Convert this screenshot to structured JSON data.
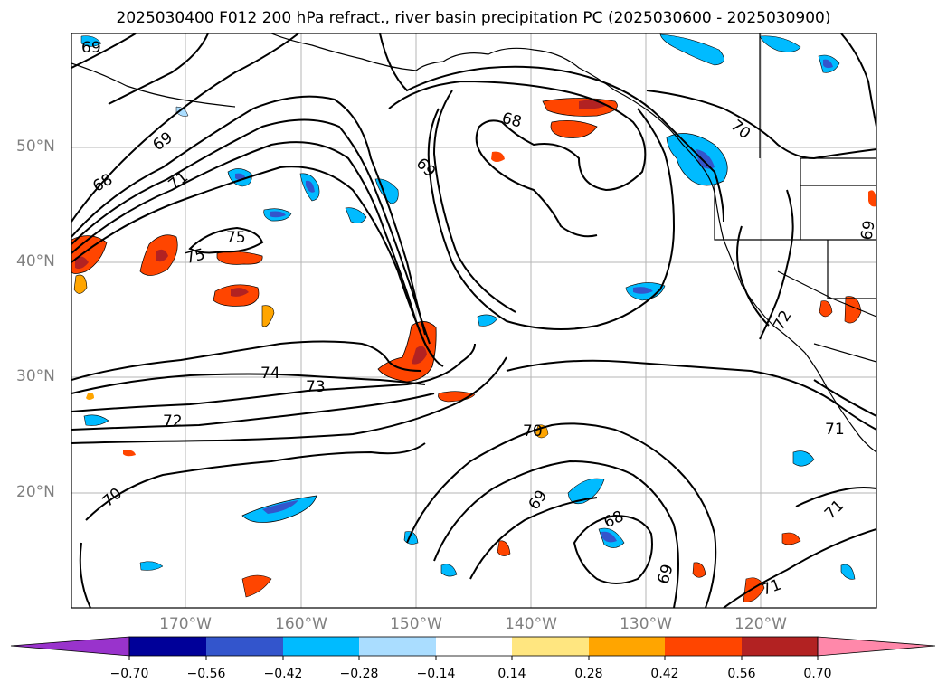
{
  "title": "2025030400 F012 200 hPa refract., river basin precipitation PC (2025030600 - 2025030900)",
  "map": {
    "lat_labels": [
      "50°N",
      "40°N",
      "30°N",
      "20°N"
    ],
    "lon_labels": [
      "170°W",
      "160°W",
      "150°W",
      "140°W",
      "130°W",
      "120°W"
    ],
    "contour_labels": [
      "69",
      "69",
      "68",
      "71",
      "75",
      "75",
      "74",
      "73",
      "72",
      "70",
      "68",
      "69",
      "70",
      "69",
      "70",
      "68",
      "69",
      "71",
      "71",
      "71",
      "72",
      "69"
    ],
    "gridline_color": "#b0b0b0"
  },
  "colorbar": {
    "ticks": [
      "−0.70",
      "−0.56",
      "−0.42",
      "−0.28",
      "−0.14",
      "0.14",
      "0.28",
      "0.42",
      "0.56",
      "0.70"
    ],
    "colors": [
      "#9933cc",
      "#000099",
      "#3355cc",
      "#00bbff",
      "#aaddff",
      "#ffffff",
      "#ffe680",
      "#ffa500",
      "#ff4500",
      "#b22222",
      "#ff88aa"
    ]
  }
}
